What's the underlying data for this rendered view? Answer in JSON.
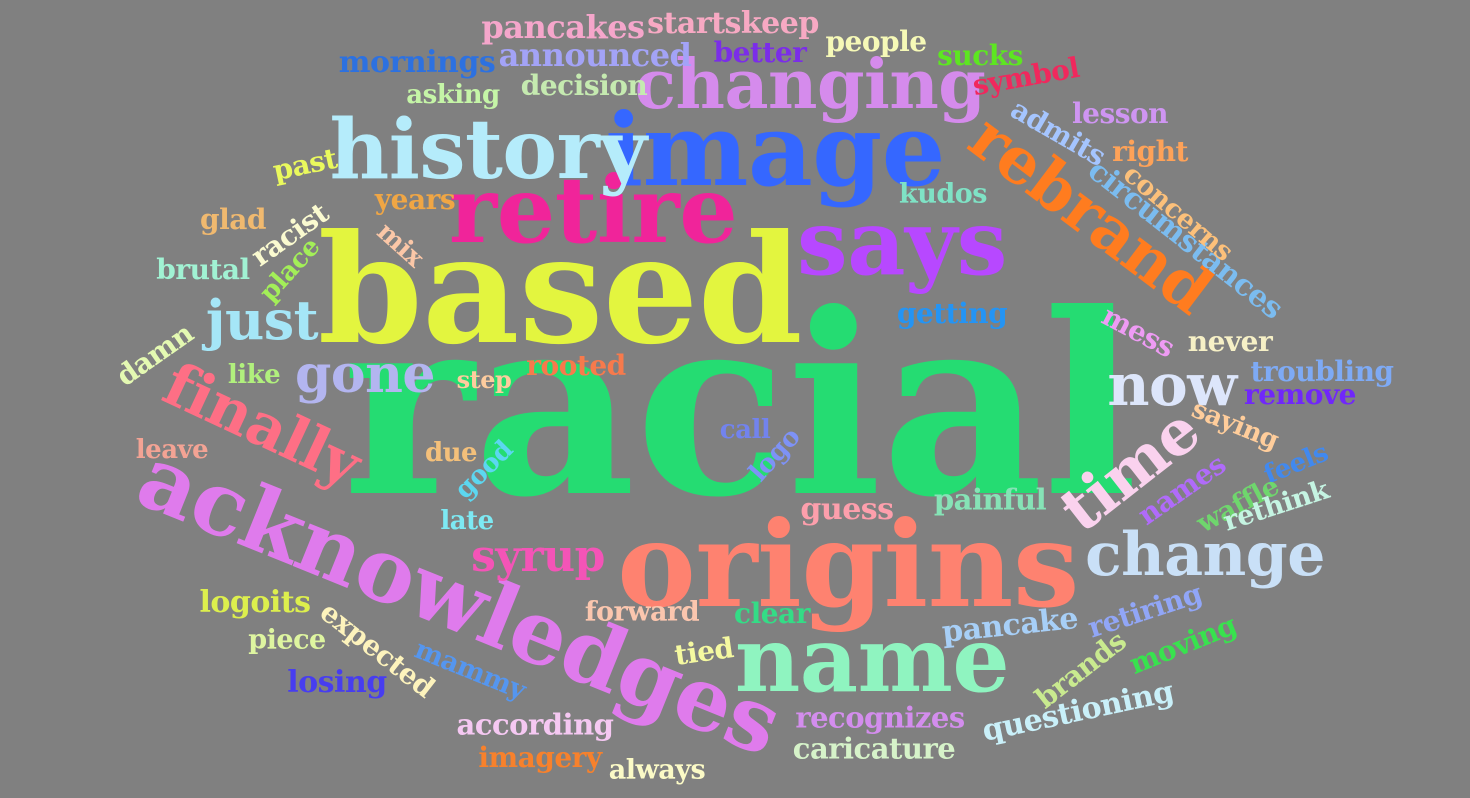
{
  "background_color": "#808080",
  "words": [
    {
      "text": "racial",
      "color": "#25dc72"
    },
    {
      "text": "based",
      "color": "#e3f53f"
    },
    {
      "text": "origins",
      "color": "#fe8270"
    },
    {
      "text": "acknowledges",
      "color": "#df7bec"
    },
    {
      "text": "image",
      "color": "#3567ff"
    },
    {
      "text": "name",
      "color": "#8ff4c0"
    },
    {
      "text": "retire",
      "color": "#f0249a"
    },
    {
      "text": "history",
      "color": "#b5ecfb"
    },
    {
      "text": "says",
      "color": "#b748ff"
    },
    {
      "text": "changing",
      "color": "#d58bec"
    },
    {
      "text": "change",
      "color": "#c9e0f7"
    },
    {
      "text": "rebrand",
      "color": "#ff7c1f"
    },
    {
      "text": "finally",
      "color": "#fe6f85"
    },
    {
      "text": "time",
      "color": "#fad2ee"
    },
    {
      "text": "now",
      "color": "#dde6fb"
    },
    {
      "text": "just",
      "color": "#a5e6f7"
    },
    {
      "text": "gone",
      "color": "#b3b5f0"
    },
    {
      "text": "syrup",
      "color": "#f454b7"
    },
    {
      "text": "pancakes",
      "color": "#f5a6cb"
    },
    {
      "text": "startskeep",
      "color": "#f7a9c3"
    },
    {
      "text": "announced",
      "color": "#a3a3f7"
    },
    {
      "text": "better",
      "color": "#7b2de8"
    },
    {
      "text": "people",
      "color": "#f6f9b7"
    },
    {
      "text": "sucks",
      "color": "#5de621"
    },
    {
      "text": "mornings",
      "color": "#2d71e0"
    },
    {
      "text": "symbol",
      "color": "#f0285d"
    },
    {
      "text": "decision",
      "color": "#c5eab0"
    },
    {
      "text": "asking",
      "color": "#c5f5a7"
    },
    {
      "text": "admits",
      "color": "#a5c5ff"
    },
    {
      "text": "lesson",
      "color": "#cf95f2"
    },
    {
      "text": "right",
      "color": "#fea258"
    },
    {
      "text": "circumstances",
      "color": "#7bbcf0"
    },
    {
      "text": "concerns",
      "color": "#fcc07a"
    },
    {
      "text": "past",
      "color": "#eaf95d"
    },
    {
      "text": "kudos",
      "color": "#7fe2c5"
    },
    {
      "text": "years",
      "color": "#f0a644"
    },
    {
      "text": "glad",
      "color": "#f0b96f"
    },
    {
      "text": "racist",
      "color": "#fafad0"
    },
    {
      "text": "mix",
      "color": "#fbc7a7"
    },
    {
      "text": "place",
      "color": "#a3ef58"
    },
    {
      "text": "brutal",
      "color": "#a1f2d3"
    },
    {
      "text": "getting",
      "color": "#2494f4"
    },
    {
      "text": "mess",
      "color": "#ee9bf4"
    },
    {
      "text": "never",
      "color": "#f6f0c6"
    },
    {
      "text": "troubling",
      "color": "#7eaaf5"
    },
    {
      "text": "remove",
      "color": "#7027fa"
    },
    {
      "text": "damn",
      "color": "#e4f9b2"
    },
    {
      "text": "like",
      "color": "#b1f07d"
    },
    {
      "text": "step",
      "color": "#fecc9e"
    },
    {
      "text": "rooted",
      "color": "#f77a4c"
    },
    {
      "text": "saying",
      "color": "#ffcd9b"
    },
    {
      "text": "feels",
      "color": "#4189ef"
    },
    {
      "text": "leave",
      "color": "#f3a394"
    },
    {
      "text": "due",
      "color": "#f4c07a"
    },
    {
      "text": "call",
      "color": "#7283ee"
    },
    {
      "text": "logo",
      "color": "#7e92f6"
    },
    {
      "text": "good",
      "color": "#5cd7f0"
    },
    {
      "text": "names",
      "color": "#b06bfa"
    },
    {
      "text": "waffle",
      "color": "#6fd66d"
    },
    {
      "text": "rethink",
      "color": "#c5f4e2"
    },
    {
      "text": "late",
      "color": "#7de9f3"
    },
    {
      "text": "guess",
      "color": "#fd9fac"
    },
    {
      "text": "painful",
      "color": "#86e3b6"
    },
    {
      "text": "logoits",
      "color": "#ddef4d"
    },
    {
      "text": "expected",
      "color": "#fdf3bc"
    },
    {
      "text": "piece",
      "color": "#def5a0"
    },
    {
      "text": "forward",
      "color": "#fbc6ae"
    },
    {
      "text": "clear",
      "color": "#34dc86"
    },
    {
      "text": "pancake",
      "color": "#a7cff7"
    },
    {
      "text": "retiring",
      "color": "#91a6f7"
    },
    {
      "text": "moving",
      "color": "#38e24e"
    },
    {
      "text": "tied",
      "color": "#f5f9a0"
    },
    {
      "text": "mammy",
      "color": "#5596ef"
    },
    {
      "text": "brands",
      "color": "#c9ea8f"
    },
    {
      "text": "losing",
      "color": "#473df0"
    },
    {
      "text": "questioning",
      "color": "#c9f0f9"
    },
    {
      "text": "according",
      "color": "#f5c8f2"
    },
    {
      "text": "recognizes",
      "color": "#d38ded"
    },
    {
      "text": "caricature",
      "color": "#d6f3c9"
    },
    {
      "text": "imagery",
      "color": "#f7812c"
    },
    {
      "text": "always",
      "color": "#fbfac6"
    }
  ]
}
